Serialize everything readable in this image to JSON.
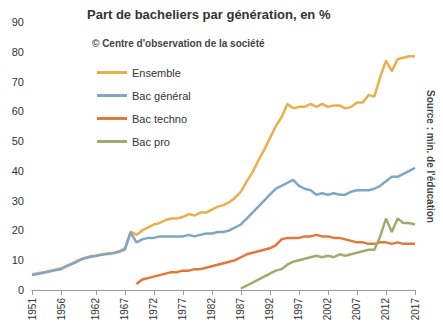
{
  "chart_data": {
    "type": "line",
    "title": "Part de bacheliers par génération, en %",
    "annotation": "© Centre d'observation de la société",
    "source": "Source : min. de l'éducation",
    "x": [
      1951,
      1952,
      1953,
      1954,
      1955,
      1956,
      1957,
      1958,
      1959,
      1960,
      1961,
      1962,
      1963,
      1964,
      1965,
      1966,
      1967,
      1968,
      1969,
      1970,
      1971,
      1972,
      1973,
      1974,
      1975,
      1976,
      1977,
      1978,
      1979,
      1980,
      1981,
      1982,
      1983,
      1984,
      1985,
      1986,
      1987,
      1988,
      1989,
      1990,
      1991,
      1992,
      1993,
      1994,
      1995,
      1996,
      1997,
      1998,
      1999,
      2000,
      2001,
      2002,
      2003,
      2004,
      2005,
      2006,
      2007,
      2008,
      2009,
      2010,
      2011,
      2012,
      2013,
      2014,
      2015,
      2016,
      2017
    ],
    "series": [
      {
        "name": "Ensemble",
        "color": "#E8B04B",
        "values": [
          5.3,
          5.6,
          6,
          6.4,
          6.8,
          7.3,
          8.2,
          9,
          10,
          10.8,
          11.3,
          11.6,
          12,
          12.3,
          12.5,
          13,
          14,
          19.6,
          18.5,
          20,
          21,
          22,
          22.5,
          23.5,
          24,
          24,
          24.5,
          25.5,
          25,
          26,
          26,
          27,
          28,
          28.5,
          29.5,
          31,
          33,
          36.5,
          39.5,
          43.5,
          47,
          51,
          55,
          58,
          62.5,
          61,
          61.5,
          61.5,
          62.5,
          61.5,
          62.5,
          61.5,
          62,
          62,
          61,
          61.5,
          63,
          63,
          65.5,
          65,
          71.5,
          77,
          73.5,
          77.5,
          78,
          78.5,
          78.5
        ]
      },
      {
        "name": "Bac général",
        "color": "#7FA6C9",
        "values": [
          5,
          5.4,
          5.8,
          6.2,
          6.6,
          7,
          8,
          8.8,
          9.8,
          10.6,
          11.1,
          11.4,
          11.8,
          12.1,
          12.3,
          12.8,
          13.6,
          19.3,
          16,
          17,
          17.5,
          17.5,
          18,
          18,
          18,
          18,
          18,
          18.5,
          18,
          18.5,
          19,
          19,
          19.5,
          19.5,
          20,
          21,
          22,
          24,
          26,
          28,
          30,
          32,
          34,
          35,
          36,
          37,
          35,
          34,
          33.5,
          32,
          32.5,
          32,
          32.5,
          32,
          32,
          33,
          33.5,
          33.5,
          33.5,
          34,
          35,
          36.5,
          38,
          38,
          39,
          40,
          41
        ]
      },
      {
        "name": "Bac techno",
        "color": "#E3773A",
        "values": [
          null,
          null,
          null,
          null,
          null,
          null,
          null,
          null,
          null,
          null,
          null,
          null,
          null,
          null,
          null,
          null,
          null,
          null,
          2,
          3.5,
          4,
          4.5,
          5,
          5.5,
          6,
          6,
          6.5,
          6.5,
          7,
          7,
          7.5,
          8,
          8.5,
          9,
          9.5,
          10,
          11,
          12,
          12.5,
          13,
          13.5,
          14,
          15,
          17,
          17.5,
          17.5,
          17.5,
          18,
          18,
          18.5,
          18,
          18,
          17.5,
          17.5,
          17,
          16.5,
          16,
          16,
          15.5,
          15.5,
          16,
          16,
          15.5,
          16,
          15.5,
          15.5,
          15.5
        ]
      },
      {
        "name": "Bac pro",
        "color": "#A3A96E",
        "values": [
          null,
          null,
          null,
          null,
          null,
          null,
          null,
          null,
          null,
          null,
          null,
          null,
          null,
          null,
          null,
          null,
          null,
          null,
          null,
          null,
          null,
          null,
          null,
          null,
          null,
          null,
          null,
          null,
          null,
          null,
          null,
          null,
          null,
          null,
          null,
          null,
          0.5,
          1.5,
          2.5,
          3.5,
          4.5,
          5.5,
          6.5,
          7,
          8.5,
          9.5,
          10,
          10.5,
          11,
          11.5,
          11,
          11.5,
          11,
          12,
          11.5,
          12,
          12.5,
          13,
          13.5,
          13.5,
          18,
          24,
          19.5,
          24,
          22.5,
          22.5,
          22
        ]
      }
    ],
    "xlim": [
      1951,
      2017
    ],
    "xticks": [
      1951,
      1956,
      1962,
      1967,
      1972,
      1977,
      1982,
      1987,
      1992,
      1997,
      2002,
      2007,
      2012,
      2017
    ],
    "ylim": [
      0,
      90
    ],
    "yticks": [
      0,
      10,
      20,
      30,
      40,
      50,
      60,
      70,
      80,
      90
    ],
    "grid": false,
    "legend": "top-left"
  }
}
